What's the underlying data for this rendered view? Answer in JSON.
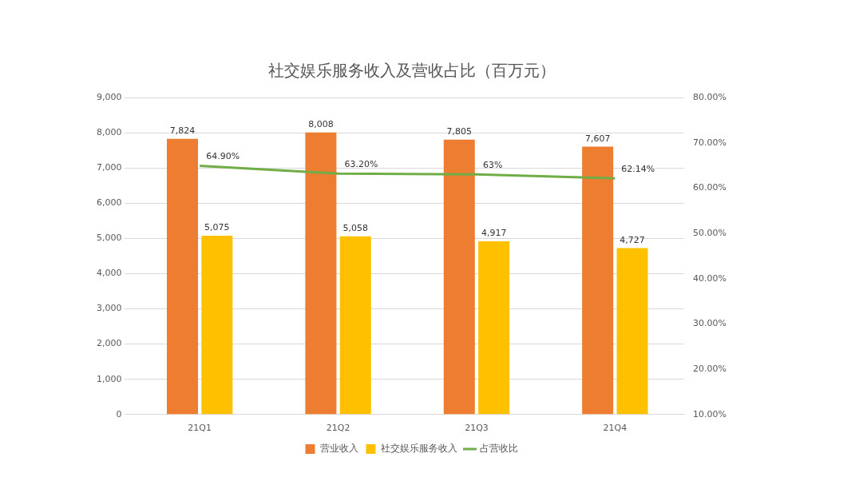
{
  "chart_data": {
    "type": "bar",
    "title": "社交娱乐服务收入及营收占比（百万元）",
    "categories": [
      "21Q1",
      "21Q2",
      "21Q3",
      "21Q4"
    ],
    "series": [
      {
        "name": "营业收入",
        "color": "#ed7d31",
        "values": [
          7824,
          8008,
          7805,
          7607
        ],
        "value_labels": [
          "7,824",
          "8,008",
          "7,805",
          "7,607"
        ]
      },
      {
        "name": "社交娱乐服务收入",
        "color": "#ffc000",
        "values": [
          5075,
          5058,
          4917,
          4727
        ],
        "value_labels": [
          "5,075",
          "5,058",
          "4,917",
          "4,727"
        ]
      },
      {
        "name": "占营收比",
        "type": "line",
        "axis": "y2",
        "color": "#70ad47",
        "marker": "none",
        "values": [
          64.9,
          63.2,
          63,
          62.14
        ],
        "value_labels": [
          "64.90%",
          "63.20%",
          "63%",
          "62.14%"
        ]
      }
    ],
    "ylim": [
      0,
      9000
    ],
    "yticks": [
      0,
      {
        "value": 1000,
        "label": "1,000"
      },
      {
        "value": 2000,
        "label": "2,000"
      },
      {
        "value": 3000,
        "label": "3,000"
      },
      {
        "value": 4000,
        "label": "4,000"
      },
      {
        "value": 5000,
        "label": "5,000"
      },
      {
        "value": 6000,
        "label": "6,000"
      },
      {
        "value": 7000,
        "label": "7,000"
      },
      {
        "value": 8000,
        "label": "8,000"
      },
      {
        "value": 9000,
        "label": "9,000"
      }
    ],
    "y2lim": [
      10,
      80
    ],
    "y2ticks": [
      {
        "value": 10,
        "label": "10.00%"
      },
      {
        "value": 20,
        "label": "20.00%"
      },
      {
        "value": 30,
        "label": "30.00%"
      },
      {
        "value": 40,
        "label": "40.00%"
      },
      {
        "value": 50,
        "label": "50.00%"
      },
      {
        "value": 60,
        "label": "60.00%"
      },
      {
        "value": 70,
        "label": "70.00%"
      },
      {
        "value": 80,
        "label": "80.00%"
      }
    ],
    "grid": "y",
    "legend": "bottom"
  }
}
